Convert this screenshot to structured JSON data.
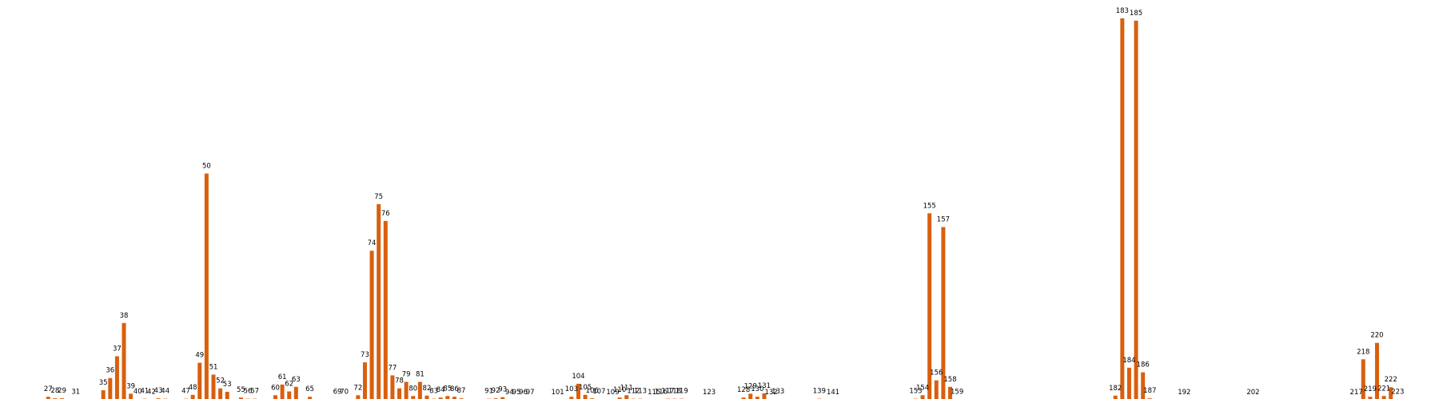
{
  "chart_data": {
    "type": "bar",
    "title": "",
    "xlabel": "",
    "ylabel": "",
    "color": "#d95f0e",
    "ylim": [
      0,
      1.0
    ],
    "x_range": [
      20,
      229
    ],
    "points": [
      {
        "x": 27,
        "value": 0.01
      },
      {
        "x": 28,
        "value": 0.006
      },
      {
        "x": 29,
        "value": 0.006
      },
      {
        "x": 31,
        "value": 0.003
      },
      {
        "x": 35,
        "value": 0.027
      },
      {
        "x": 36,
        "value": 0.059
      },
      {
        "x": 37,
        "value": 0.116
      },
      {
        "x": 38,
        "value": 0.203
      },
      {
        "x": 39,
        "value": 0.018
      },
      {
        "x": 40,
        "value": 0.004
      },
      {
        "x": 41,
        "value": 0.005
      },
      {
        "x": 42,
        "value": 0.003
      },
      {
        "x": 43,
        "value": 0.006
      },
      {
        "x": 44,
        "value": 0.005
      },
      {
        "x": 47,
        "value": 0.005
      },
      {
        "x": 48,
        "value": 0.015
      },
      {
        "x": 49,
        "value": 0.099
      },
      {
        "x": 50,
        "value": 0.594
      },
      {
        "x": 51,
        "value": 0.068
      },
      {
        "x": 52,
        "value": 0.032
      },
      {
        "x": 53,
        "value": 0.023
      },
      {
        "x": 55,
        "value": 0.008
      },
      {
        "x": 56,
        "value": 0.005
      },
      {
        "x": 57,
        "value": 0.005
      },
      {
        "x": 60,
        "value": 0.014
      },
      {
        "x": 61,
        "value": 0.042
      },
      {
        "x": 62,
        "value": 0.024
      },
      {
        "x": 63,
        "value": 0.036
      },
      {
        "x": 65,
        "value": 0.01
      },
      {
        "x": 69,
        "value": 0.003
      },
      {
        "x": 70,
        "value": 0.003
      },
      {
        "x": 72,
        "value": 0.014
      },
      {
        "x": 73,
        "value": 0.1
      },
      {
        "x": 74,
        "value": 0.392
      },
      {
        "x": 75,
        "value": 0.514
      },
      {
        "x": 76,
        "value": 0.47
      },
      {
        "x": 77,
        "value": 0.066
      },
      {
        "x": 78,
        "value": 0.032
      },
      {
        "x": 79,
        "value": 0.049
      },
      {
        "x": 80,
        "value": 0.012
      },
      {
        "x": 81,
        "value": 0.049
      },
      {
        "x": 82,
        "value": 0.013
      },
      {
        "x": 83,
        "value": 0.005
      },
      {
        "x": 84,
        "value": 0.008
      },
      {
        "x": 85,
        "value": 0.012
      },
      {
        "x": 86,
        "value": 0.01
      },
      {
        "x": 87,
        "value": 0.006
      },
      {
        "x": 91,
        "value": 0.005
      },
      {
        "x": 92,
        "value": 0.006
      },
      {
        "x": 93,
        "value": 0.009
      },
      {
        "x": 94,
        "value": 0.002
      },
      {
        "x": 95,
        "value": 0.002
      },
      {
        "x": 96,
        "value": 0.002
      },
      {
        "x": 97,
        "value": 0.002
      },
      {
        "x": 101,
        "value": 0.002
      },
      {
        "x": 103,
        "value": 0.01
      },
      {
        "x": 104,
        "value": 0.044
      },
      {
        "x": 105,
        "value": 0.015
      },
      {
        "x": 106,
        "value": 0.006
      },
      {
        "x": 107,
        "value": 0.004
      },
      {
        "x": 109,
        "value": 0.002
      },
      {
        "x": 110,
        "value": 0.008
      },
      {
        "x": 111,
        "value": 0.014
      },
      {
        "x": 112,
        "value": 0.005
      },
      {
        "x": 113,
        "value": 0.005
      },
      {
        "x": 115,
        "value": 0.002
      },
      {
        "x": 116,
        "value": 0.003
      },
      {
        "x": 117,
        "value": 0.005
      },
      {
        "x": 118,
        "value": 0.005
      },
      {
        "x": 119,
        "value": 0.005
      },
      {
        "x": 123,
        "value": 0.002
      },
      {
        "x": 128,
        "value": 0.008
      },
      {
        "x": 129,
        "value": 0.018
      },
      {
        "x": 130,
        "value": 0.01
      },
      {
        "x": 131,
        "value": 0.019
      },
      {
        "x": 132,
        "value": 0.002
      },
      {
        "x": 133,
        "value": 0.004
      },
      {
        "x": 139,
        "value": 0.005
      },
      {
        "x": 141,
        "value": 0.002
      },
      {
        "x": 153,
        "value": 0.005
      },
      {
        "x": 154,
        "value": 0.014
      },
      {
        "x": 155,
        "value": 0.49
      },
      {
        "x": 156,
        "value": 0.053
      },
      {
        "x": 157,
        "value": 0.454
      },
      {
        "x": 158,
        "value": 0.036
      },
      {
        "x": 159,
        "value": 0.003
      },
      {
        "x": 182,
        "value": 0.013
      },
      {
        "x": 183,
        "value": 1.0
      },
      {
        "x": 184,
        "value": 0.086
      },
      {
        "x": 185,
        "value": 0.994
      },
      {
        "x": 186,
        "value": 0.074
      },
      {
        "x": 187,
        "value": 0.006
      },
      {
        "x": 192,
        "value": 0.002
      },
      {
        "x": 202,
        "value": 0.002
      },
      {
        "x": 217,
        "value": 0.002
      },
      {
        "x": 218,
        "value": 0.108
      },
      {
        "x": 219,
        "value": 0.01
      },
      {
        "x": 220,
        "value": 0.151
      },
      {
        "x": 221,
        "value": 0.012
      },
      {
        "x": 222,
        "value": 0.035
      },
      {
        "x": 223,
        "value": 0.003
      }
    ]
  }
}
